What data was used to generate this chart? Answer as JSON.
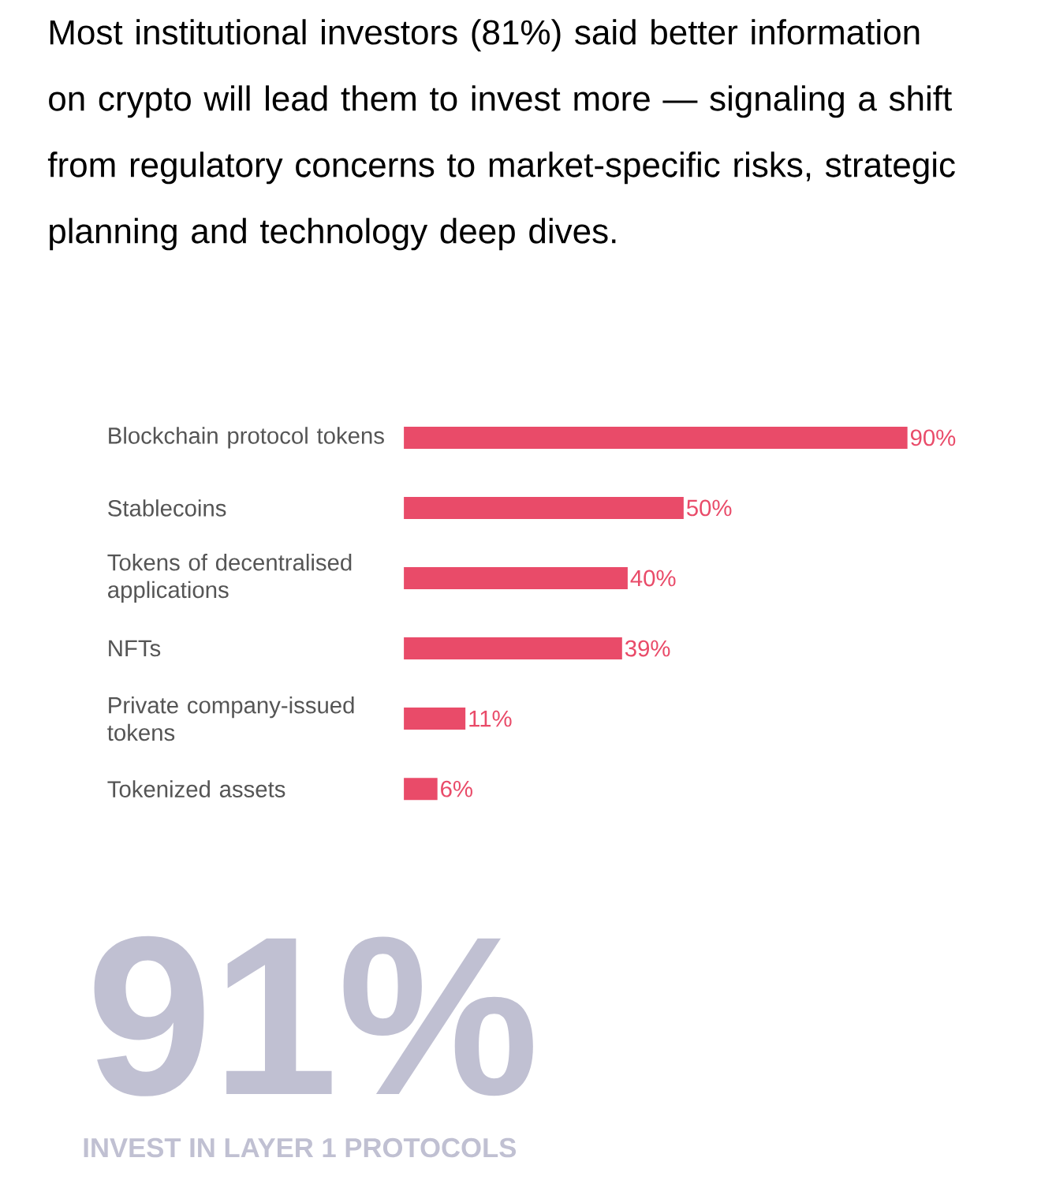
{
  "chart_data": {
    "type": "bar",
    "orientation": "horizontal",
    "title": "Most institutional investors (81%) said better information on crypto will lead them to invest more — signaling a shift from regulatory concerns to market-specific risks, strategic planning and technology deep dives.",
    "categories": [
      "Blockchain protocol tokens",
      "Stablecoins",
      "Tokens of decentralised applications",
      "NFTs",
      "Private company-issued tokens",
      "Tokenized assets"
    ],
    "values": [
      90,
      50,
      40,
      39,
      11,
      6
    ],
    "value_labels": [
      "90%",
      "50%",
      "40%",
      "39%",
      "11%",
      "6%"
    ],
    "color": "#e94b69",
    "annotations": [
      "91%",
      "INVEST IN LAYER 1 PROTOCOLS"
    ]
  }
}
